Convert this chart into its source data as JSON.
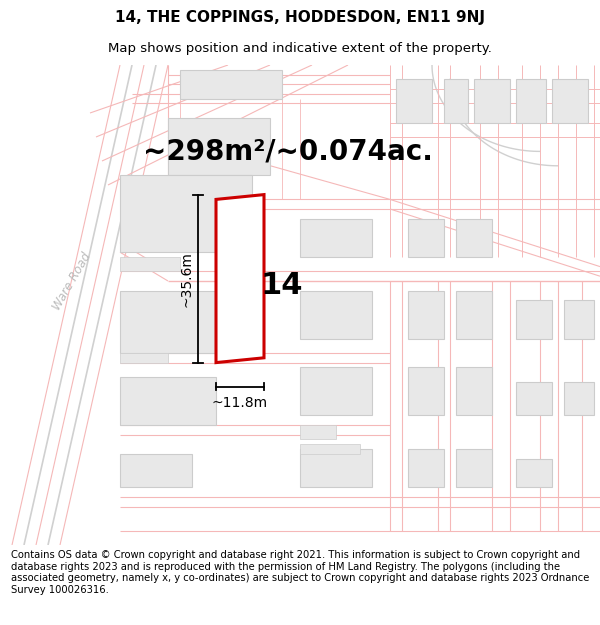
{
  "title": "14, THE COPPINGS, HODDESDON, EN11 9NJ",
  "subtitle": "Map shows position and indicative extent of the property.",
  "area_text": "~298m²/~0.074ac.",
  "property_number": "14",
  "dim_height": "~35.6m",
  "dim_width": "~11.8m",
  "road_label": "Ware Road",
  "footer_text": "Contains OS data © Crown copyright and database right 2021. This information is subject to Crown copyright and database rights 2023 and is reproduced with the permission of HM Land Registry. The polygons (including the associated geometry, namely x, y co-ordinates) are subject to Crown copyright and database rights 2023 Ordnance Survey 100026316.",
  "bg_color": "#ffffff",
  "map_bg": "#ffffff",
  "road_color": "#f5b8b8",
  "road_color2": "#d0d0d0",
  "building_fill": "#e8e8e8",
  "building_edge": "#cccccc",
  "property_fill": "#ffffff",
  "property_edge": "#cc0000",
  "dim_line_color": "#000000",
  "text_color": "#000000",
  "ware_road_color": "#bbbbbb",
  "title_fontsize": 11,
  "subtitle_fontsize": 9.5,
  "area_fontsize": 20,
  "number_fontsize": 22,
  "dim_fontsize": 10,
  "footer_fontsize": 7.2,
  "road_label_fontsize": 8.5
}
